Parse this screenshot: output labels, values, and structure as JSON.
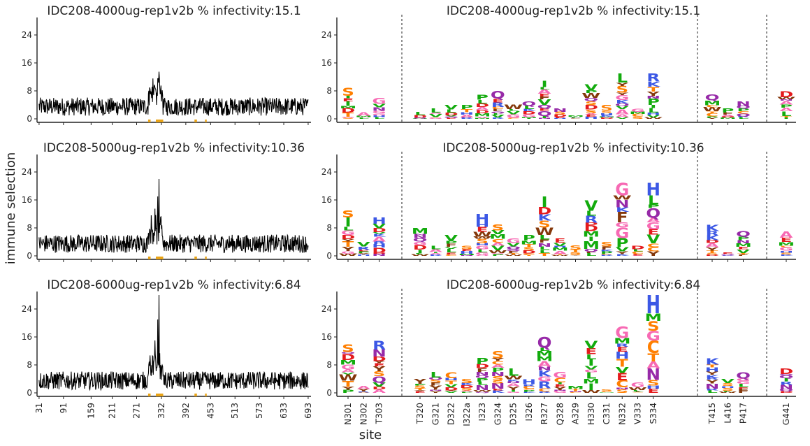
{
  "figure": {
    "ylabel": "immune selection",
    "xlabel": "site"
  },
  "chart_data": {
    "type": "line+logo",
    "ylim": [
      -1,
      29
    ],
    "yticks": [
      0,
      8,
      16,
      24
    ],
    "line_xticks": [
      "31",
      "91",
      "159",
      "211",
      "271",
      "332",
      "392",
      "453",
      "513",
      "573",
      "633",
      "693"
    ],
    "line_xrange": [
      26,
      700
    ],
    "highlight_color": "#e8a317",
    "highlighted_sites": [
      301,
      302,
      303,
      320,
      321,
      322,
      323,
      324,
      325,
      326,
      327,
      328,
      329,
      330,
      331,
      332,
      333,
      334,
      415,
      416,
      417,
      441
    ],
    "sites": [
      "N301",
      "N302",
      "T303",
      "T320",
      "G321",
      "D322",
      "I322a",
      "I323",
      "G324",
      "D325",
      "I326",
      "R327",
      "Q328",
      "A329",
      "H330",
      "C331",
      "N332",
      "V333",
      "S334",
      "T415",
      "L416",
      "P417",
      "G441"
    ],
    "site_groups": [
      3,
      16,
      3,
      1
    ],
    "letter_colors": {
      "A": "#f76ab4",
      "C": "#ff7f00",
      "D": "#e41a1c",
      "E": "#e41a1c",
      "F": "#84380b",
      "G": "#f76ab4",
      "H": "#3c58e5",
      "I": "#12ab0d",
      "K": "#3c58e5",
      "L": "#12ab0d",
      "M": "#12ab0d",
      "N": "#972aa8",
      "P": "#12ab0d",
      "Q": "#972aa8",
      "R": "#3c58e5",
      "S": "#ff7f00",
      "T": "#ff7f00",
      "V": "#12ab0d",
      "W": "#84380b",
      "Y": "#84380b"
    },
    "panels": [
      {
        "title": "IDC208-4000ug-rep1v2b % infectivity:15.1",
        "baseline": 3.5,
        "peaks": [
          {
            "site": 326,
            "value": 13.5
          },
          {
            "site": 323,
            "value": 11.5
          },
          {
            "site": 316,
            "value": 9
          }
        ],
        "logo_heights": [
          9,
          2,
          6,
          2,
          3,
          4,
          4,
          7,
          8,
          4,
          5,
          11,
          3,
          1,
          10,
          4,
          13,
          3,
          13,
          7,
          3,
          5,
          8
        ],
        "logo_top_letters": [
          "S",
          "A",
          "G",
          "L",
          "L",
          "V",
          "P",
          "P",
          "Q",
          "W",
          "Q",
          "I",
          "N",
          "M",
          "V",
          "S",
          "L",
          "G",
          "R",
          "Q",
          "P",
          "N",
          "D"
        ]
      },
      {
        "title": "IDC208-5000ug-rep1v2b % infectivity:10.36",
        "baseline": 3.5,
        "peaks": [
          {
            "site": 326,
            "value": 22
          },
          {
            "site": 323,
            "value": 17
          },
          {
            "site": 316,
            "value": 13.5
          }
        ],
        "logo_heights": [
          13,
          4,
          11,
          8,
          3,
          6,
          3,
          12,
          9,
          5,
          6,
          17,
          5,
          3,
          16,
          4,
          21,
          3,
          21,
          9,
          1,
          7,
          7
        ],
        "logo_top_letters": [
          "S",
          "V",
          "H",
          "M",
          "L",
          "V",
          "S",
          "H",
          "S",
          "G",
          "P",
          "I",
          "E",
          "S",
          "V",
          "S",
          "G",
          "D",
          "H",
          "K",
          "E",
          "Q",
          "A"
        ]
      },
      {
        "title": "IDC208-6000ug-rep1v2b % infectivity:6.84",
        "baseline": 3.5,
        "peaks": [
          {
            "site": 326,
            "value": 28
          },
          {
            "site": 323,
            "value": 21
          },
          {
            "site": 316,
            "value": 15
          }
        ],
        "logo_heights": [
          14,
          2,
          15,
          4,
          6,
          6,
          4,
          10,
          12,
          7,
          4,
          16,
          6,
          2,
          15,
          1,
          19,
          3,
          28,
          10,
          4,
          6,
          7
        ],
        "logo_top_letters": [
          "S",
          "A",
          "R",
          "Y",
          "L",
          "C",
          "S",
          "P",
          "S",
          "L",
          "H",
          "Q",
          "G",
          "M",
          "V",
          "S",
          "G",
          "G",
          "H",
          "K",
          "V",
          "Q",
          "D"
        ]
      }
    ]
  }
}
